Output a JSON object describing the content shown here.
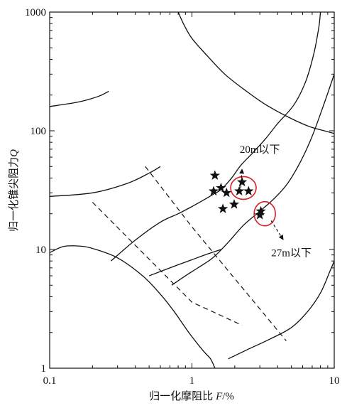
{
  "chart_data": {
    "type": "scatter",
    "title": "",
    "xlabel_main": "归一化摩阻比",
    "xlabel_var": "F",
    "xlabel_unit": "/%",
    "ylabel_main": "归一化锥尖阻力",
    "ylabel_var": "Q",
    "xscale": "log",
    "yscale": "log",
    "xlim": [
      0.1,
      10
    ],
    "ylim": [
      1,
      1000
    ],
    "x_ticks": [
      {
        "value": 0.1,
        "label": "0.1"
      },
      {
        "value": 1,
        "label": "1"
      },
      {
        "value": 10,
        "label": "10"
      }
    ],
    "y_ticks": [
      {
        "value": 1,
        "label": "1"
      },
      {
        "value": 10,
        "label": "10"
      },
      {
        "value": 100,
        "label": "100"
      },
      {
        "value": 1000,
        "label": "1000"
      }
    ],
    "grid": false,
    "points": [
      {
        "x": 1.45,
        "y": 42
      },
      {
        "x": 1.42,
        "y": 31
      },
      {
        "x": 1.6,
        "y": 33
      },
      {
        "x": 1.75,
        "y": 30
      },
      {
        "x": 1.65,
        "y": 22
      },
      {
        "x": 1.98,
        "y": 24
      },
      {
        "x": 2.25,
        "y": 37
      },
      {
        "x": 2.15,
        "y": 31
      },
      {
        "x": 2.5,
        "y": 31
      },
      {
        "x": 3.05,
        "y": 21
      },
      {
        "x": 3.0,
        "y": 19.5
      }
    ],
    "circles": [
      {
        "x": 2.3,
        "y": 33
      },
      {
        "x": 3.25,
        "y": 20
      }
    ],
    "annotations": [
      {
        "text": "20m以下",
        "x": 3.0,
        "y": 65
      },
      {
        "text": "27m以下",
        "x": 5.0,
        "y": 8.8
      }
    ],
    "annotation_arrows": [
      {
        "from": [
          2.2,
          33
        ],
        "to": [
          2.25,
          48
        ]
      },
      {
        "from": [
          3.6,
          17.5
        ],
        "to": [
          4.4,
          12
        ]
      }
    ],
    "boundary_curves": [
      [
        [
          0.1,
          160
        ],
        [
          0.16,
          175
        ],
        [
          0.22,
          195
        ],
        [
          0.26,
          215
        ]
      ],
      [
        [
          0.8,
          1000
        ],
        [
          0.88,
          780
        ],
        [
          1.0,
          600
        ],
        [
          1.3,
          420
        ],
        [
          1.7,
          300
        ],
        [
          2.3,
          225
        ],
        [
          3.2,
          170
        ],
        [
          4.5,
          135
        ],
        [
          6.5,
          110
        ],
        [
          8.5,
          100
        ],
        [
          10,
          95
        ]
      ],
      [
        [
          0.1,
          28
        ],
        [
          0.2,
          30
        ],
        [
          0.35,
          36
        ],
        [
          0.5,
          44
        ],
        [
          0.6,
          50
        ]
      ],
      [
        [
          0.27,
          8
        ],
        [
          0.4,
          12
        ],
        [
          0.6,
          17
        ],
        [
          0.8,
          20
        ],
        [
          1.0,
          23
        ],
        [
          1.2,
          26
        ],
        [
          1.4,
          29
        ],
        [
          1.6,
          32
        ],
        [
          1.9,
          40
        ],
        [
          2.2,
          51
        ],
        [
          2.7,
          66
        ],
        [
          3.3,
          86
        ],
        [
          4.0,
          115
        ],
        [
          5.2,
          165
        ],
        [
          6.3,
          260
        ],
        [
          7.2,
          450
        ],
        [
          7.8,
          750
        ],
        [
          8.0,
          1000
        ]
      ],
      [
        [
          0.5,
          6
        ],
        [
          0.7,
          7
        ],
        [
          1.0,
          8.2
        ],
        [
          1.3,
          9.2
        ],
        [
          1.6,
          10
        ]
      ],
      [
        [
          0.72,
          5
        ],
        [
          0.9,
          6
        ],
        [
          1.1,
          7
        ],
        [
          1.4,
          8.5
        ],
        [
          1.8,
          11.5
        ],
        [
          2.3,
          16
        ],
        [
          3.0,
          21
        ],
        [
          3.8,
          27
        ],
        [
          4.7,
          36
        ],
        [
          5.8,
          55
        ],
        [
          7.0,
          90
        ],
        [
          8.5,
          170
        ],
        [
          10,
          300
        ]
      ],
      [
        [
          0.1,
          9.4
        ],
        [
          0.125,
          10.6
        ],
        [
          0.16,
          10.7
        ],
        [
          0.2,
          10.2
        ],
        [
          0.3,
          8.5
        ],
        [
          0.45,
          6
        ],
        [
          0.6,
          4.2
        ],
        [
          0.75,
          3
        ],
        [
          0.95,
          2
        ],
        [
          1.2,
          1.4
        ],
        [
          1.35,
          1.2
        ],
        [
          1.45,
          1.0
        ]
      ],
      [
        [
          1.8,
          1.2
        ],
        [
          2.5,
          1.45
        ],
        [
          3.5,
          1.75
        ],
        [
          5.0,
          2.2
        ],
        [
          6.5,
          3
        ],
        [
          8.0,
          4.3
        ],
        [
          9.3,
          6.5
        ],
        [
          10,
          8
        ]
      ]
    ],
    "dashed_lines": [
      [
        [
          0.2,
          25
        ],
        [
          1.0,
          3.6
        ],
        [
          2.25,
          2.3
        ]
      ],
      [
        [
          0.47,
          50
        ],
        [
          1.0,
          15.5
        ],
        [
          4.6,
          1.7
        ]
      ]
    ]
  }
}
